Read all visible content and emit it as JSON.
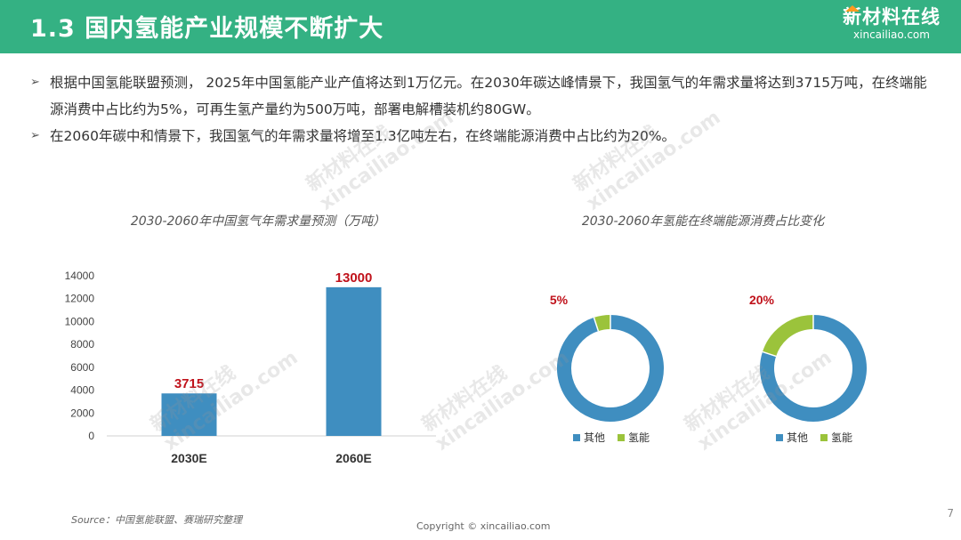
{
  "header": {
    "title": "1.3 国内氢能产业规模不断扩大",
    "logo_main": "新材料在线",
    "logo_sub": "xincailiao.com"
  },
  "bullets": [
    "根据中国氢能联盟预测， 2025年中国氢能产业产值将达到1万亿元。在2030年碳达峰情景下，我国氢气的年需求量将达到3715万吨，在终端能源消费中占比约为5%，可再生氢产量约为500万吨，部署电解槽装机约80GW。",
    "在2060年碳中和情景下，我国氢气的年需求量将增至1.3亿吨左右，在终端能源消费中占比约为20%。"
  ],
  "bullet_glyph": "➢",
  "watermark": {
    "cn": "新材料在线",
    "en": "xincailiao.com"
  },
  "colors": {
    "header": "#34b183",
    "bar": "#3f8ec0",
    "other": "#3f8ec0",
    "hydrogen": "#9bc33b",
    "value_label": "#c0121b"
  },
  "chart_data": [
    {
      "type": "bar",
      "title": "2030-2060年中国氢气年需求量预测（万吨）",
      "categories": [
        "2030E",
        "2060E"
      ],
      "values": [
        3715,
        13000
      ],
      "data_labels": [
        "3715",
        "13000"
      ],
      "ylim": [
        0,
        14000
      ],
      "yticks": [
        0,
        2000,
        4000,
        6000,
        8000,
        10000,
        12000,
        14000
      ],
      "xlabel": "",
      "ylabel": "",
      "grid": false
    },
    {
      "type": "pie",
      "title": "2030-2060年氢能在终端能源消费占比变化",
      "donuts": [
        {
          "slices": [
            {
              "label": "其他",
              "value": 95
            },
            {
              "label": "氢能",
              "value": 5
            }
          ],
          "data_label": "5%"
        },
        {
          "slices": [
            {
              "label": "其他",
              "value": 80
            },
            {
              "label": "氢能",
              "value": 20
            }
          ],
          "data_label": "20%"
        }
      ],
      "legend": [
        "其他",
        "氢能"
      ],
      "legend_position": "bottom"
    }
  ],
  "footer": {
    "source": "Source：中国氢能联盟、赛瑞研究整理",
    "copyright": "Copyright © xincailiao.com",
    "page": "7"
  }
}
